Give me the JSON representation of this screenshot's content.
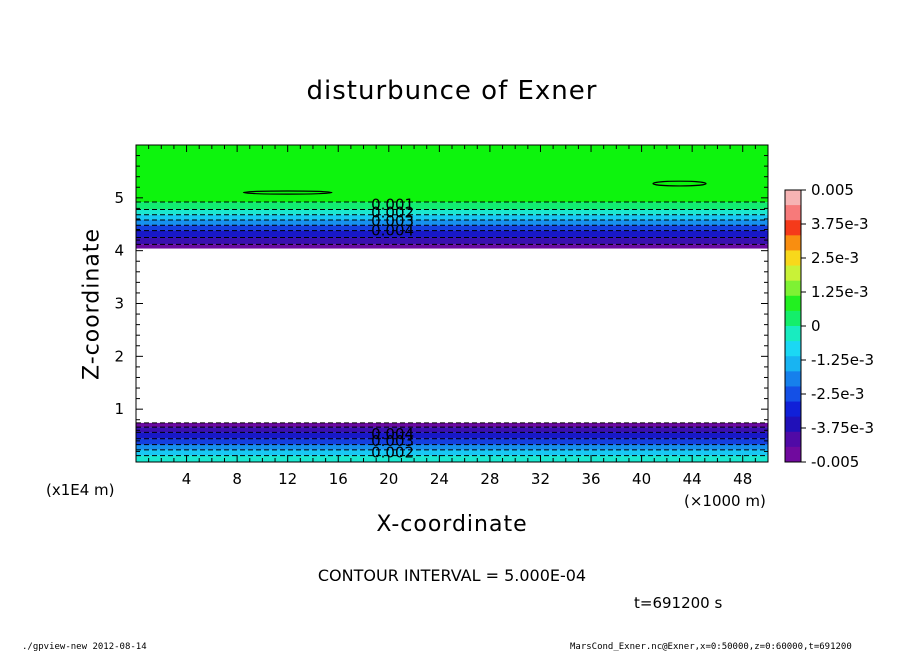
{
  "chart_data": {
    "type": "heatmap",
    "title": "disturbunce of Exner",
    "xlabel": "X-coordinate",
    "ylabel": "Z-coordinate",
    "x_scale_label": "(×1000 m)",
    "y_scale_label": "(x1E4 m)",
    "xlim": [
      0,
      50
    ],
    "ylim": [
      0,
      6
    ],
    "x_ticks": [
      "4",
      "8",
      "12",
      "16",
      "20",
      "24",
      "28",
      "32",
      "36",
      "40",
      "44",
      "48"
    ],
    "x_tick_values": [
      4,
      8,
      12,
      16,
      20,
      24,
      28,
      32,
      36,
      40,
      44,
      48
    ],
    "y_ticks": [
      "1",
      "2",
      "3",
      "4",
      "5"
    ],
    "y_tick_values": [
      1,
      2,
      3,
      4,
      5
    ],
    "colorbar": {
      "labels": [
        "0.005",
        "3.75e-3",
        "2.5e-3",
        "1.25e-3",
        "0",
        "-1.25e-3",
        "-2.5e-3",
        "-3.75e-3",
        "-0.005"
      ],
      "colors": [
        "#f6b3b3",
        "#f77a7a",
        "#f53a1a",
        "#f98e10",
        "#f8d81b",
        "#c9f237",
        "#7ef233",
        "#22f020",
        "#14ee6a",
        "#18ecc0",
        "#1bd8f4",
        "#18b4f2",
        "#1680ec",
        "#1450e6",
        "#1020d8",
        "#2010b8",
        "#500aa6",
        "#700a9e"
      ]
    },
    "bands": [
      {
        "z_from": 4.92,
        "z_to": 6.0,
        "value": 0.0,
        "color": "#0df40d"
      },
      {
        "z_from": 4.78,
        "z_to": 4.92,
        "value": -0.0005,
        "color": "#12ec70"
      },
      {
        "z_from": 4.68,
        "z_to": 4.78,
        "value": -0.001,
        "color": "#1ae8d0"
      },
      {
        "z_from": 4.58,
        "z_to": 4.68,
        "value": -0.0015,
        "color": "#18c8f4"
      },
      {
        "z_from": 4.48,
        "z_to": 4.58,
        "value": -0.002,
        "color": "#1690ef"
      },
      {
        "z_from": 4.38,
        "z_to": 4.48,
        "value": -0.003,
        "color": "#1440e0"
      },
      {
        "z_from": 4.25,
        "z_to": 4.38,
        "value": -0.0035,
        "color": "#1818c8"
      },
      {
        "z_from": 4.12,
        "z_to": 4.25,
        "value": -0.004,
        "color": "#3a10b0"
      },
      {
        "z_from": 4.04,
        "z_to": 4.12,
        "value": -0.0045,
        "color": "#6a0aa0"
      },
      {
        "z_from": 0.66,
        "z_to": 0.74,
        "value": -0.0045,
        "color": "#6a0aa0"
      },
      {
        "z_from": 0.56,
        "z_to": 0.66,
        "value": -0.004,
        "color": "#3a10b0"
      },
      {
        "z_from": 0.44,
        "z_to": 0.56,
        "value": -0.0035,
        "color": "#1818c8"
      },
      {
        "z_from": 0.33,
        "z_to": 0.44,
        "value": -0.003,
        "color": "#1440e0"
      },
      {
        "z_from": 0.23,
        "z_to": 0.33,
        "value": -0.002,
        "color": "#1690ef"
      },
      {
        "z_from": 0.12,
        "z_to": 0.23,
        "value": -0.0015,
        "color": "#18c8f4"
      },
      {
        "z_from": 0.0,
        "z_to": 0.12,
        "value": -0.001,
        "color": "#1ae8d0"
      }
    ],
    "contour_labels": [
      {
        "text": "0.001",
        "x": 20.3,
        "z": 4.87
      },
      {
        "text": "0.002",
        "x": 20.3,
        "z": 4.72
      },
      {
        "text": "0.003",
        "x": 20.3,
        "z": 4.56
      },
      {
        "text": "0.004",
        "x": 20.3,
        "z": 4.38
      },
      {
        "text": "0.004",
        "x": 20.3,
        "z": 0.53
      },
      {
        "text": "0.003",
        "x": 20.3,
        "z": 0.4
      },
      {
        "text": "0.002",
        "x": 20.3,
        "z": 0.18
      }
    ],
    "closed_contours": [
      {
        "x_center": 12.0,
        "z_center": 5.1,
        "x_width": 7.0,
        "z_height": 0.06
      },
      {
        "x_center": 43.0,
        "z_center": 5.27,
        "x_width": 4.2,
        "z_height": 0.09
      }
    ],
    "contour_interval_text": "CONTOUR INTERVAL = 5.000E-04",
    "time_text": "t=691200 s"
  },
  "footer": {
    "left": "./gpview-new   2012-08-14",
    "right": "MarsCond_Exner.nc@Exner,x=0:50000,z=0:60000,t=691200"
  }
}
